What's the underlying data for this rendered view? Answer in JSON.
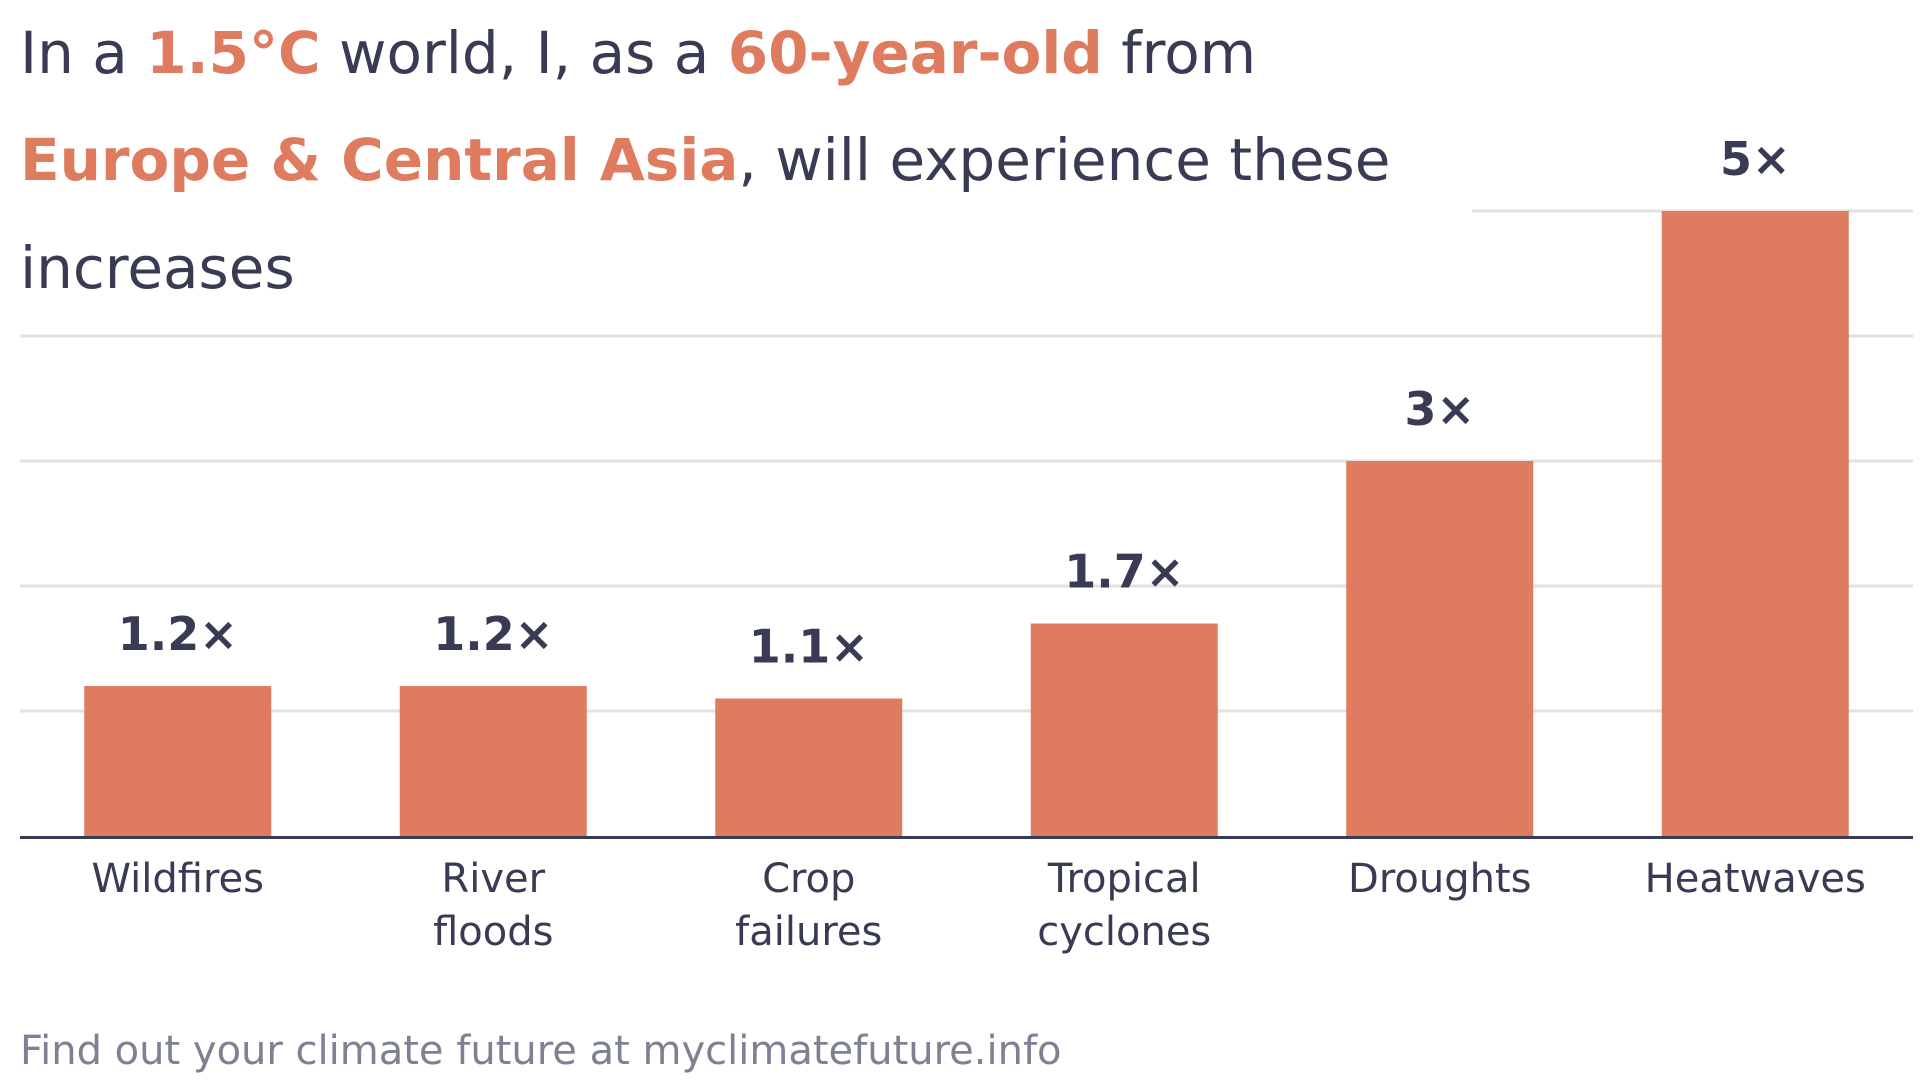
{
  "title": {
    "prefix": "In a ",
    "temperature": "1.5°C",
    "mid1": " world, I, as a ",
    "age": "60-year-old",
    "mid2": " from",
    "region": "Europe & Central Asia",
    "mid3": ", will experience these",
    "line3": "increases"
  },
  "footer": {
    "text": "Find out your climate future at myclimatefuture.info"
  },
  "colors": {
    "bar": "#df7b5f",
    "highlight": "#df7b5f",
    "text": "#383b53",
    "gridline": "#e1e1e1",
    "axis": "#383b53",
    "footer": "#7e8194"
  },
  "chart_data": {
    "type": "bar",
    "title": "In a 1.5°C world, I, as a 60-year-old from Europe & Central Asia, will experience these increases",
    "categories": [
      [
        "Wildfires"
      ],
      [
        "River",
        "floods"
      ],
      [
        "Crop",
        "failures"
      ],
      [
        "Tropical",
        "cyclones"
      ],
      [
        "Droughts"
      ],
      [
        "Heatwaves"
      ]
    ],
    "values": [
      1.2,
      1.2,
      1.1,
      1.7,
      3,
      5
    ],
    "labels": [
      "1.2×",
      "1.2×",
      "1.1×",
      "1.7×",
      "3×",
      "5×"
    ],
    "ylim": [
      0,
      5
    ],
    "gridlines": [
      1,
      2,
      3,
      4,
      5
    ],
    "grid": true,
    "xlabel": "",
    "ylabel": ""
  }
}
